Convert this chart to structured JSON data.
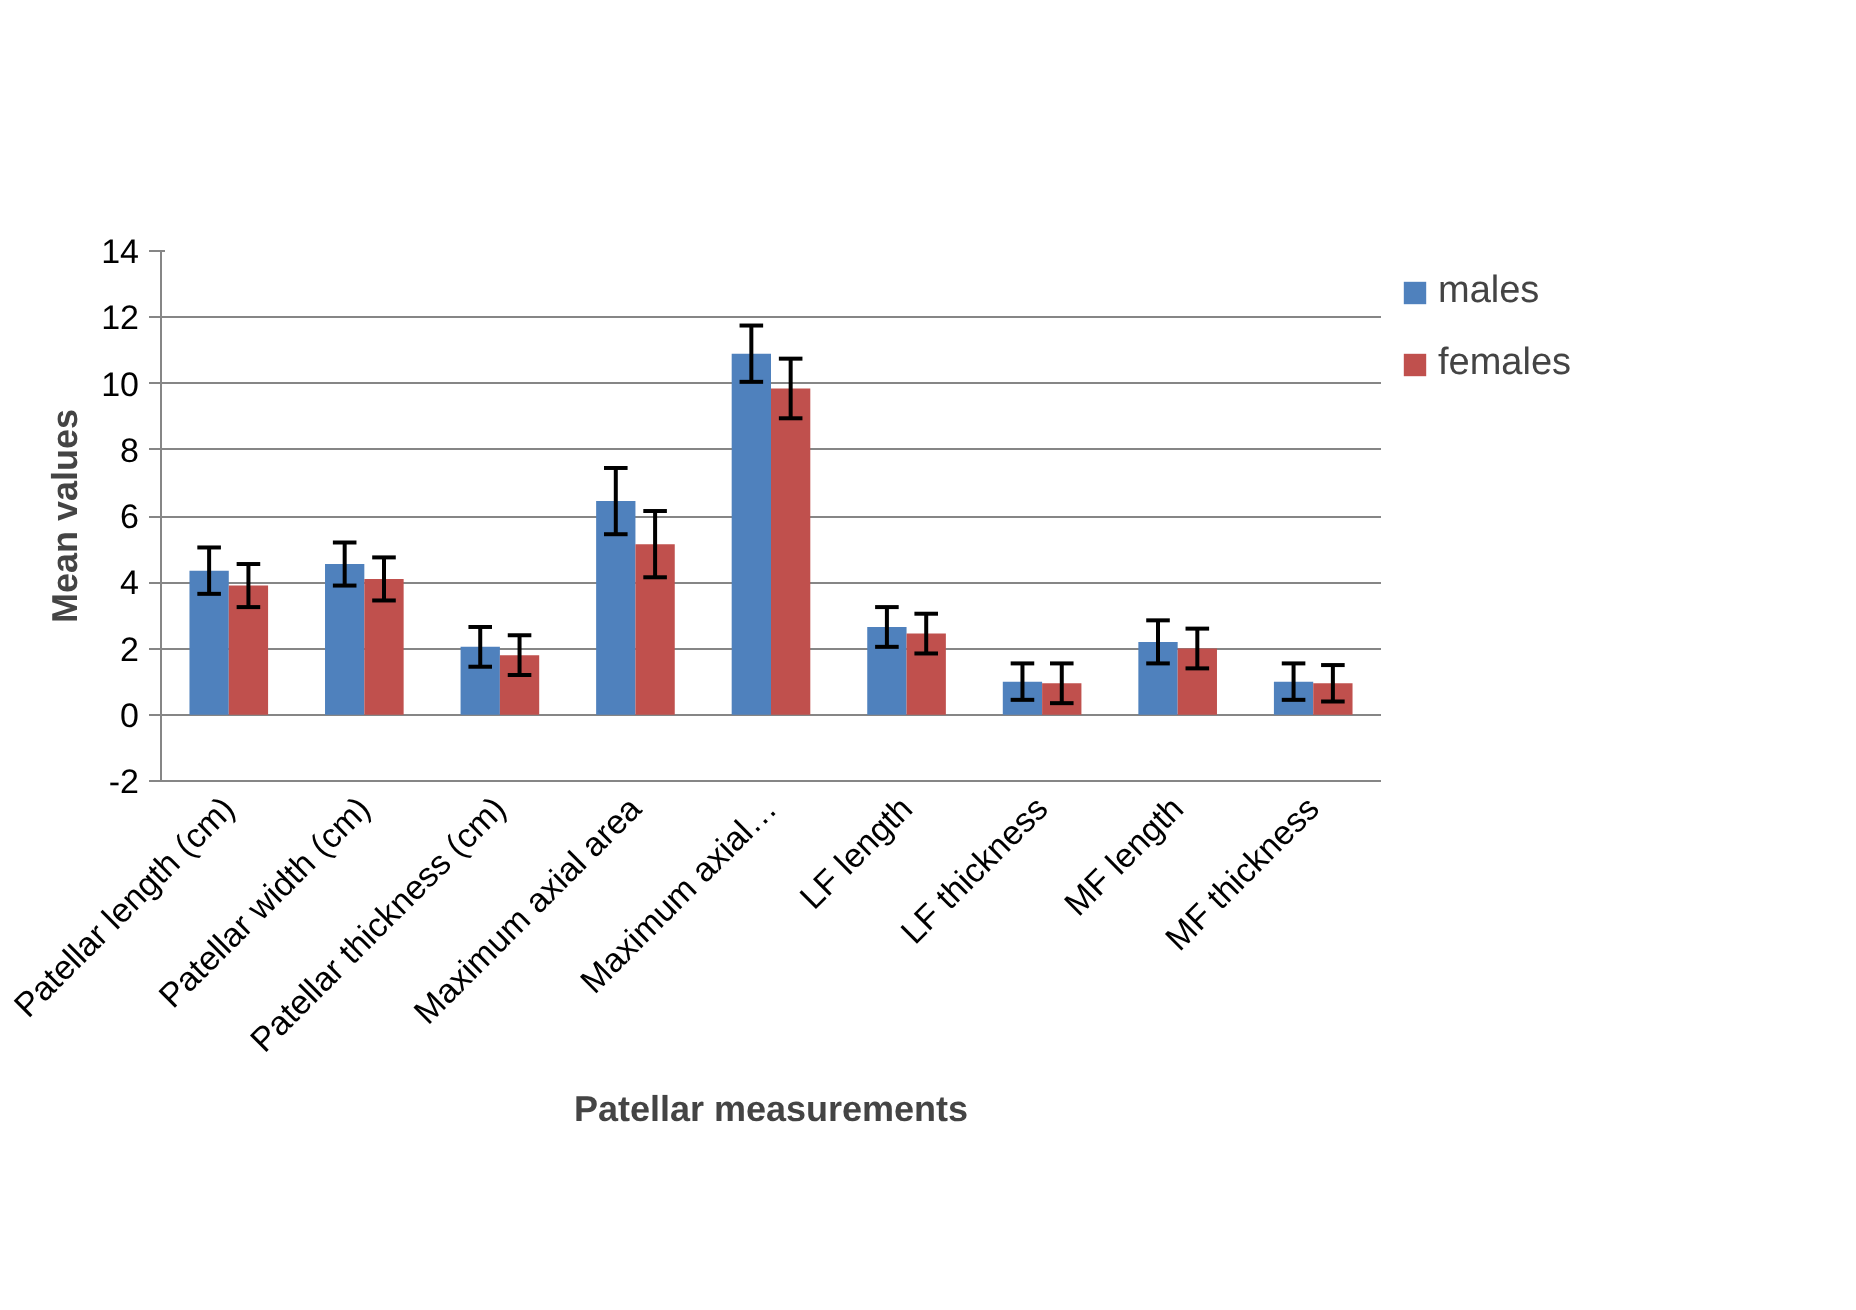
{
  "chart_data": {
    "type": "bar",
    "xlabel": "Patellar measurements",
    "ylabel": "Mean values",
    "categories": [
      "Patellar length (cm)",
      "Patellar width (cm)",
      "Patellar thickness (cm)",
      "Maximum axial area",
      "Maximum axial…",
      "LF length",
      "LF thickness",
      "MF length",
      "MF thickness"
    ],
    "series": [
      {
        "name": "males",
        "color": "#4f81bd",
        "values": [
          4.35,
          4.55,
          2.05,
          6.45,
          10.9,
          2.65,
          1.0,
          2.2,
          1.0
        ],
        "errors": [
          0.7,
          0.65,
          0.6,
          1.0,
          0.85,
          0.6,
          0.55,
          0.65,
          0.55
        ]
      },
      {
        "name": "females",
        "color": "#c0504d",
        "values": [
          3.9,
          4.1,
          1.8,
          5.15,
          9.85,
          2.45,
          0.95,
          2.0,
          0.95
        ],
        "errors": [
          0.65,
          0.65,
          0.6,
          1.0,
          0.9,
          0.6,
          0.6,
          0.6,
          0.55
        ]
      }
    ],
    "ylim": [
      -2,
      14
    ],
    "yticks": [
      -2,
      0,
      2,
      4,
      6,
      8,
      10,
      12,
      14
    ],
    "grid": "y",
    "legend": "top right"
  }
}
